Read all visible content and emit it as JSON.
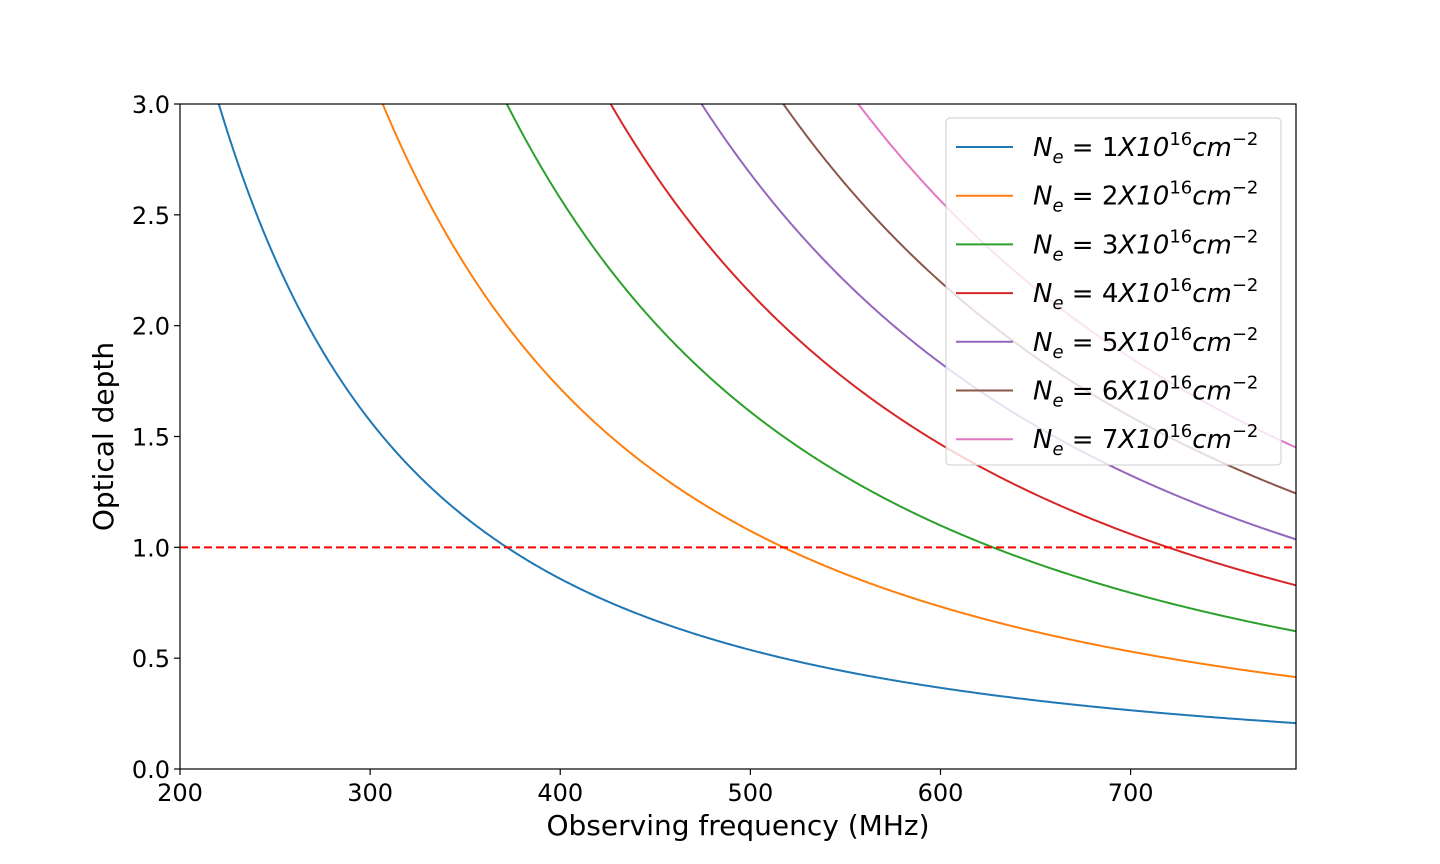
{
  "chart_data": {
    "type": "line",
    "xlabel": "Observing frequency (MHz)",
    "ylabel": "Optical depth",
    "xlim": [
      200,
      787
    ],
    "ylim": [
      0.0,
      3.0
    ],
    "x_ticks": [
      "200",
      "300",
      "400",
      "500",
      "600",
      "700"
    ],
    "y_ticks": [
      "0.0",
      "0.5",
      "1.0",
      "1.5",
      "2.0",
      "2.5",
      "3.0"
    ],
    "legend_position": "top-right",
    "model": "tau = k * (Ne / 1e16) * f^-2.1",
    "model_k": 250000,
    "model_exponent": -2.1,
    "series": [
      {
        "name": "1",
        "ne": 1,
        "color": "#1f77b4",
        "legend": {
          "lhs": "N",
          "sub": "e",
          "eq": " = ",
          "coef": "1",
          "x": "X10",
          "exp": "16",
          "unit": "cm",
          "unit_exp": "−2"
        }
      },
      {
        "name": "2",
        "ne": 2,
        "color": "#ff7f0e",
        "legend": {
          "lhs": "N",
          "sub": "e",
          "eq": " = ",
          "coef": "2",
          "x": "X10",
          "exp": "16",
          "unit": "cm",
          "unit_exp": "−2"
        }
      },
      {
        "name": "3",
        "ne": 3,
        "color": "#2ca02c",
        "legend": {
          "lhs": "N",
          "sub": "e",
          "eq": " = ",
          "coef": "3",
          "x": "X10",
          "exp": "16",
          "unit": "cm",
          "unit_exp": "−2"
        }
      },
      {
        "name": "4",
        "ne": 4,
        "color": "#d62728",
        "legend": {
          "lhs": "N",
          "sub": "e",
          "eq": " = ",
          "coef": "4",
          "x": "X10",
          "exp": "16",
          "unit": "cm",
          "unit_exp": "−2"
        }
      },
      {
        "name": "5",
        "ne": 5,
        "color": "#9467bd",
        "legend": {
          "lhs": "N",
          "sub": "e",
          "eq": " = ",
          "coef": "5",
          "x": "X10",
          "exp": "16",
          "unit": "cm",
          "unit_exp": "−2"
        }
      },
      {
        "name": "6",
        "ne": 6,
        "color": "#8c564b",
        "legend": {
          "lhs": "N",
          "sub": "e",
          "eq": " = ",
          "coef": "6",
          "x": "X10",
          "exp": "16",
          "unit": "cm",
          "unit_exp": "−2"
        }
      },
      {
        "name": "7",
        "ne": 7,
        "color": "#e377c2",
        "legend": {
          "lhs": "N",
          "sub": "e",
          "eq": " = ",
          "coef": "7",
          "x": "X10",
          "exp": "16",
          "unit": "cm",
          "unit_exp": "−2"
        }
      }
    ],
    "reference_line": {
      "y": 1.0,
      "color": "#ff0000",
      "style": "dashed"
    }
  }
}
